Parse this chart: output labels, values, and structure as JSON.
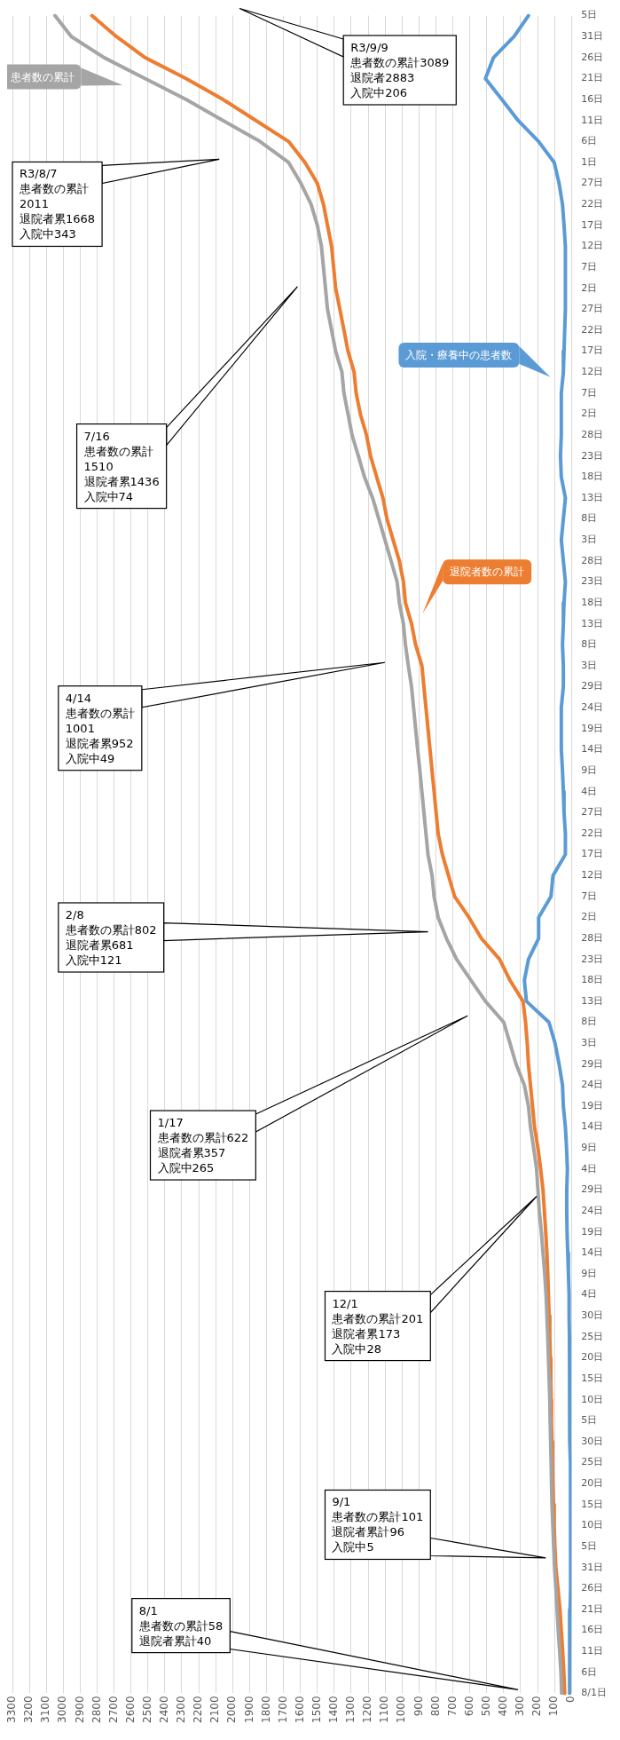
{
  "chart_data": {
    "type": "line",
    "orientation": "horizontal",
    "categories": [
      "5日",
      "31日",
      "26日",
      "21日",
      "16日",
      "11日",
      "6日",
      "1日",
      "27日",
      "22日",
      "17日",
      "12日",
      "7日",
      "2日",
      "27日",
      "22日",
      "17日",
      "12日",
      "7日",
      "2日",
      "28日",
      "23日",
      "18日",
      "13日",
      "8日",
      "3日",
      "28日",
      "23日",
      "18日",
      "13日",
      "8日",
      "3日",
      "29日",
      "24日",
      "19日",
      "14日",
      "9日",
      "4日",
      "27日",
      "22日",
      "17日",
      "12日",
      "7日",
      "2日",
      "28日",
      "23日",
      "18日",
      "13日",
      "8日",
      "3日",
      "29日",
      "24日",
      "19日",
      "14日",
      "9日",
      "4日",
      "29日",
      "24日",
      "19日",
      "14日",
      "9日",
      "4日",
      "30日",
      "25日",
      "20日",
      "15日",
      "10日",
      "5日",
      "30日",
      "25日",
      "20日",
      "15日",
      "10日",
      "5日",
      "31日",
      "26日",
      "21日",
      "16日",
      "11日",
      "6日",
      "8/1日"
    ],
    "series": [
      {
        "name": "患者数の累計",
        "color": "#a5a5a5",
        "values": [
          3049,
          2952,
          2759,
          2517,
          2275,
          2057,
          1839,
          1670,
          1597,
          1537,
          1500,
          1476,
          1464,
          1452,
          1440,
          1416,
          1392,
          1355,
          1343,
          1319,
          1295,
          1258,
          1222,
          1174,
          1137,
          1101,
          1065,
          1029,
          1016,
          992,
          980,
          963,
          944,
          932,
          920,
          908,
          895,
          883,
          871,
          859,
          847,
          823,
          811,
          787,
          738,
          678,
          593,
          508,
          400,
          363,
          327,
          278,
          254,
          242,
          223,
          206,
          198,
          190,
          178,
          168,
          158,
          150,
          145,
          140,
          136,
          132,
          128,
          126,
          123,
          120,
          118,
          115,
          110,
          105,
          100,
          92,
          85,
          78,
          70,
          62,
          58
        ]
      },
      {
        "name": "退院者数の累計",
        "color": "#ed7d31",
        "values": [
          2831,
          2686,
          2517,
          2275,
          2057,
          1863,
          1670,
          1573,
          1500,
          1464,
          1440,
          1416,
          1404,
          1392,
          1367,
          1343,
          1319,
          1283,
          1271,
          1246,
          1210,
          1186,
          1150,
          1113,
          1089,
          1053,
          1016,
          992,
          980,
          944,
          920,
          883,
          871,
          859,
          847,
          835,
          823,
          811,
          799,
          787,
          762,
          726,
          690,
          605,
          532,
          424,
          363,
          286,
          271,
          261,
          254,
          242,
          230,
          218,
          198,
          182,
          168,
          160,
          152,
          145,
          140,
          136,
          132,
          128,
          125,
          122,
          120,
          118,
          115,
          112,
          110,
          106,
          102,
          98,
          92,
          80,
          68,
          60,
          52,
          45,
          40
        ]
      },
      {
        "name": "入院・療養中の患者数",
        "color": "#5b9bd5",
        "values": [
          254,
          339,
          460,
          508,
          411,
          315,
          194,
          102,
          73,
          53,
          44,
          36,
          36,
          36,
          36,
          40,
          44,
          48,
          60,
          60,
          60,
          65,
          60,
          36,
          48,
          60,
          48,
          36,
          44,
          48,
          53,
          48,
          48,
          60,
          60,
          60,
          53,
          48,
          44,
          36,
          36,
          109,
          121,
          194,
          194,
          254,
          278,
          266,
          133,
          97,
          73,
          53,
          48,
          36,
          29,
          24,
          28,
          28,
          26,
          22,
          18,
          14,
          14,
          12,
          12,
          12,
          10,
          10,
          8,
          6,
          4,
          5,
          5,
          4,
          6,
          6,
          8,
          10,
          12,
          10,
          12
        ]
      }
    ],
    "xlim": [
      3300,
      0
    ],
    "xticks": [
      0,
      100,
      200,
      300,
      400,
      500,
      600,
      700,
      800,
      900,
      1000,
      1100,
      1200,
      1300,
      1400,
      1500,
      1600,
      1700,
      1800,
      1900,
      2000,
      2100,
      2200,
      2300,
      2400,
      2500,
      2600,
      2700,
      2800,
      2900,
      3000,
      3100,
      3200,
      3300
    ],
    "grid": "x",
    "annotations": [
      "8/1\n患者数の累計58\n退院者累計40",
      "9/1\n患者数の累計101\n退院者累計96\n入院中5",
      "12/1\n患者数の累計201\n退院者累173\n入院中28",
      "1/17\n患者数の累計622\n退院者累357\n入院中265",
      "2/8\n患者数の累計802\n退院者累681\n入院中121",
      "4/14\n患者数の累計\n1001\n退院者累952\n入院中49",
      "7/16\n患者数の累計\n1510\n退院者累1436\n入院中74",
      "R3/8/7\n患者数の累計\n2011\n退院者累1668\n入院中343",
      "R3/9/9\n患者数の累計3089\n退院者2883\n入院中206"
    ]
  }
}
